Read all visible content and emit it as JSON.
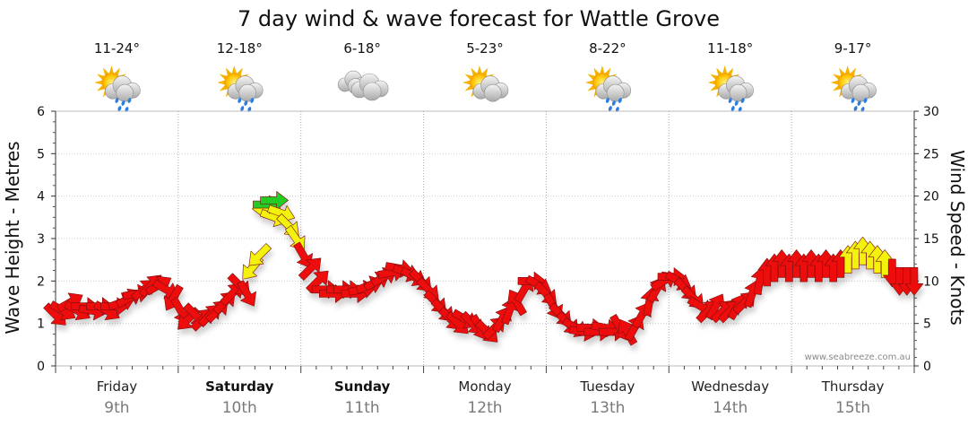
{
  "chart_data": {
    "type": "line",
    "title": "7 day wind & wave forecast for Wattle Grove",
    "ylabel_left": "Wave Height - Metres",
    "ylabel_right": "Wind Speed - Knots",
    "ylim_left": [
      0,
      6
    ],
    "ylim_right": [
      0,
      30
    ],
    "yticks_left": [
      "0",
      "1",
      "2",
      "3",
      "4",
      "5",
      "6"
    ],
    "yticks_right": [
      "0",
      "5",
      "10",
      "15",
      "20",
      "25",
      "30"
    ],
    "grid": true,
    "credit": "www.seabreeze.com.au",
    "days": [
      {
        "name": "Friday",
        "date": "9th",
        "temp": "11-24°",
        "icon": "sun-cloud-rain-icon",
        "bold": false
      },
      {
        "name": "Saturday",
        "date": "10th",
        "temp": "12-18°",
        "icon": "sun-cloud-rain-icon",
        "bold": true
      },
      {
        "name": "Sunday",
        "date": "11th",
        "temp": "6-18°",
        "icon": "cloud-icon",
        "bold": true
      },
      {
        "name": "Monday",
        "date": "12th",
        "temp": "5-23°",
        "icon": "sun-cloud-icon",
        "bold": false
      },
      {
        "name": "Tuesday",
        "date": "13th",
        "temp": "8-22°",
        "icon": "sun-cloud-rain-icon",
        "bold": false
      },
      {
        "name": "Wednesday",
        "date": "14th",
        "temp": "11-18°",
        "icon": "sun-cloud-rain-icon",
        "bold": false
      },
      {
        "name": "Thursday",
        "date": "15th",
        "temp": "9-17°",
        "icon": "sun-cloud-rain-icon",
        "bold": false
      }
    ],
    "wind_colors": {
      "green": "#22cc22",
      "yellow": "#f2f20a",
      "red": "#ee1111"
    },
    "wind_series": {
      "name": "Wind Speed",
      "x_unit": "days from start of Friday",
      "points": [
        {
          "x": 0.0,
          "kt": 6.0,
          "dir": 135,
          "c": "red"
        },
        {
          "x": 0.06,
          "kt": 6.5,
          "dir": 120,
          "c": "red"
        },
        {
          "x": 0.12,
          "kt": 7.5,
          "dir": 60,
          "c": "red"
        },
        {
          "x": 0.18,
          "kt": 6.5,
          "dir": 120,
          "c": "red"
        },
        {
          "x": 0.24,
          "kt": 7.0,
          "dir": 90,
          "c": "red"
        },
        {
          "x": 0.3,
          "kt": 6.5,
          "dir": 100,
          "c": "red"
        },
        {
          "x": 0.36,
          "kt": 7.0,
          "dir": 90,
          "c": "red"
        },
        {
          "x": 0.42,
          "kt": 6.5,
          "dir": 120,
          "c": "red"
        },
        {
          "x": 0.48,
          "kt": 7.0,
          "dir": 90,
          "c": "red"
        },
        {
          "x": 0.54,
          "kt": 7.5,
          "dir": 70,
          "c": "red"
        },
        {
          "x": 0.6,
          "kt": 8.0,
          "dir": 60,
          "c": "red"
        },
        {
          "x": 0.66,
          "kt": 8.5,
          "dir": 80,
          "c": "red"
        },
        {
          "x": 0.72,
          "kt": 9.0,
          "dir": 50,
          "c": "red"
        },
        {
          "x": 0.78,
          "kt": 9.5,
          "dir": 45,
          "c": "red"
        },
        {
          "x": 0.84,
          "kt": 9.5,
          "dir": 60,
          "c": "red"
        },
        {
          "x": 0.9,
          "kt": 9.0,
          "dir": 120,
          "c": "red"
        },
        {
          "x": 0.96,
          "kt": 8.0,
          "dir": 210,
          "c": "red"
        },
        {
          "x": 1.02,
          "kt": 6.5,
          "dir": 150,
          "c": "red"
        },
        {
          "x": 1.08,
          "kt": 5.5,
          "dir": 225,
          "c": "red"
        },
        {
          "x": 1.14,
          "kt": 6.0,
          "dir": 135,
          "c": "red"
        },
        {
          "x": 1.2,
          "kt": 5.5,
          "dir": 45,
          "c": "red"
        },
        {
          "x": 1.26,
          "kt": 6.0,
          "dir": 45,
          "c": "red"
        },
        {
          "x": 1.32,
          "kt": 6.5,
          "dir": 45,
          "c": "red"
        },
        {
          "x": 1.38,
          "kt": 7.5,
          "dir": 45,
          "c": "red"
        },
        {
          "x": 1.44,
          "kt": 8.5,
          "dir": 45,
          "c": "red"
        },
        {
          "x": 1.5,
          "kt": 9.5,
          "dir": 135,
          "c": "red"
        },
        {
          "x": 1.56,
          "kt": 8.5,
          "dir": 150,
          "c": "red"
        },
        {
          "x": 1.6,
          "kt": 11.5,
          "dir": 220,
          "c": "yellow"
        },
        {
          "x": 1.66,
          "kt": 13.0,
          "dir": 225,
          "c": "yellow"
        },
        {
          "x": 1.72,
          "kt": 18.5,
          "dir": 270,
          "c": "yellow"
        },
        {
          "x": 1.78,
          "kt": 17.5,
          "dir": 110,
          "c": "yellow"
        },
        {
          "x": 1.72,
          "kt": 19.0,
          "dir": 90,
          "c": "green"
        },
        {
          "x": 1.78,
          "kt": 19.5,
          "dir": 90,
          "c": "green"
        },
        {
          "x": 1.84,
          "kt": 18.0,
          "dir": 110,
          "c": "yellow"
        },
        {
          "x": 1.9,
          "kt": 16.5,
          "dir": 135,
          "c": "yellow"
        },
        {
          "x": 1.96,
          "kt": 15.0,
          "dir": 145,
          "c": "yellow"
        },
        {
          "x": 2.02,
          "kt": 13.0,
          "dir": 150,
          "c": "red"
        },
        {
          "x": 2.08,
          "kt": 11.5,
          "dir": 45,
          "c": "red"
        },
        {
          "x": 2.14,
          "kt": 10.0,
          "dir": 45,
          "c": "red"
        },
        {
          "x": 2.2,
          "kt": 9.0,
          "dir": 90,
          "c": "red"
        },
        {
          "x": 2.26,
          "kt": 8.5,
          "dir": 90,
          "c": "red"
        },
        {
          "x": 2.32,
          "kt": 9.0,
          "dir": 90,
          "c": "red"
        },
        {
          "x": 2.38,
          "kt": 9.0,
          "dir": 90,
          "c": "red"
        },
        {
          "x": 2.44,
          "kt": 8.5,
          "dir": 90,
          "c": "red"
        },
        {
          "x": 2.5,
          "kt": 9.0,
          "dir": 80,
          "c": "red"
        },
        {
          "x": 2.56,
          "kt": 9.5,
          "dir": 70,
          "c": "red"
        },
        {
          "x": 2.62,
          "kt": 10.0,
          "dir": 60,
          "c": "red"
        },
        {
          "x": 2.68,
          "kt": 10.5,
          "dir": 60,
          "c": "red"
        },
        {
          "x": 2.74,
          "kt": 11.0,
          "dir": 80,
          "c": "red"
        },
        {
          "x": 2.8,
          "kt": 11.5,
          "dir": 100,
          "c": "red"
        },
        {
          "x": 2.86,
          "kt": 11.0,
          "dir": 110,
          "c": "red"
        },
        {
          "x": 2.92,
          "kt": 10.5,
          "dir": 120,
          "c": "red"
        },
        {
          "x": 2.98,
          "kt": 10.0,
          "dir": 135,
          "c": "red"
        },
        {
          "x": 3.04,
          "kt": 9.0,
          "dir": 135,
          "c": "red"
        },
        {
          "x": 3.1,
          "kt": 7.5,
          "dir": 135,
          "c": "red"
        },
        {
          "x": 3.16,
          "kt": 6.5,
          "dir": 135,
          "c": "red"
        },
        {
          "x": 3.22,
          "kt": 5.5,
          "dir": 135,
          "c": "red"
        },
        {
          "x": 3.28,
          "kt": 5.0,
          "dir": 135,
          "c": "red"
        },
        {
          "x": 3.34,
          "kt": 5.5,
          "dir": 120,
          "c": "red"
        },
        {
          "x": 3.4,
          "kt": 5.0,
          "dir": 135,
          "c": "red"
        },
        {
          "x": 3.46,
          "kt": 4.5,
          "dir": 150,
          "c": "red"
        },
        {
          "x": 3.52,
          "kt": 4.0,
          "dir": 135,
          "c": "red"
        },
        {
          "x": 3.58,
          "kt": 4.5,
          "dir": 45,
          "c": "red"
        },
        {
          "x": 3.64,
          "kt": 5.5,
          "dir": 30,
          "c": "red"
        },
        {
          "x": 3.7,
          "kt": 6.5,
          "dir": 20,
          "c": "red"
        },
        {
          "x": 3.76,
          "kt": 7.5,
          "dir": 330,
          "c": "red"
        },
        {
          "x": 3.82,
          "kt": 9.0,
          "dir": 30,
          "c": "red"
        },
        {
          "x": 3.88,
          "kt": 10.0,
          "dir": 90,
          "c": "red"
        },
        {
          "x": 3.94,
          "kt": 9.5,
          "dir": 120,
          "c": "red"
        },
        {
          "x": 4.0,
          "kt": 8.5,
          "dir": 135,
          "c": "red"
        },
        {
          "x": 4.06,
          "kt": 7.0,
          "dir": 150,
          "c": "red"
        },
        {
          "x": 4.12,
          "kt": 6.0,
          "dir": 135,
          "c": "red"
        },
        {
          "x": 4.18,
          "kt": 5.0,
          "dir": 135,
          "c": "red"
        },
        {
          "x": 4.24,
          "kt": 4.5,
          "dir": 120,
          "c": "red"
        },
        {
          "x": 4.3,
          "kt": 4.0,
          "dir": 100,
          "c": "red"
        },
        {
          "x": 4.36,
          "kt": 4.5,
          "dir": 90,
          "c": "red"
        },
        {
          "x": 4.42,
          "kt": 4.0,
          "dir": 90,
          "c": "red"
        },
        {
          "x": 4.48,
          "kt": 4.5,
          "dir": 100,
          "c": "red"
        },
        {
          "x": 4.54,
          "kt": 4.0,
          "dir": 90,
          "c": "red"
        },
        {
          "x": 4.6,
          "kt": 4.5,
          "dir": 150,
          "c": "red"
        },
        {
          "x": 4.66,
          "kt": 4.0,
          "dir": 330,
          "c": "red"
        },
        {
          "x": 4.72,
          "kt": 4.5,
          "dir": 30,
          "c": "red"
        },
        {
          "x": 4.78,
          "kt": 6.0,
          "dir": 30,
          "c": "red"
        },
        {
          "x": 4.84,
          "kt": 7.5,
          "dir": 10,
          "c": "red"
        },
        {
          "x": 4.9,
          "kt": 9.0,
          "dir": 30,
          "c": "red"
        },
        {
          "x": 4.96,
          "kt": 10.0,
          "dir": 60,
          "c": "red"
        },
        {
          "x": 5.02,
          "kt": 10.5,
          "dir": 90,
          "c": "red"
        },
        {
          "x": 5.08,
          "kt": 10.0,
          "dir": 120,
          "c": "red"
        },
        {
          "x": 5.14,
          "kt": 9.0,
          "dir": 135,
          "c": "red"
        },
        {
          "x": 5.2,
          "kt": 8.0,
          "dir": 135,
          "c": "red"
        },
        {
          "x": 5.26,
          "kt": 7.0,
          "dir": 120,
          "c": "red"
        },
        {
          "x": 5.32,
          "kt": 6.5,
          "dir": 45,
          "c": "red"
        },
        {
          "x": 5.38,
          "kt": 7.0,
          "dir": 30,
          "c": "red"
        },
        {
          "x": 5.44,
          "kt": 6.5,
          "dir": 45,
          "c": "red"
        },
        {
          "x": 5.5,
          "kt": 6.5,
          "dir": 45,
          "c": "red"
        },
        {
          "x": 5.56,
          "kt": 7.0,
          "dir": 30,
          "c": "red"
        },
        {
          "x": 5.62,
          "kt": 7.5,
          "dir": 45,
          "c": "red"
        },
        {
          "x": 5.68,
          "kt": 8.5,
          "dir": 20,
          "c": "red"
        },
        {
          "x": 5.74,
          "kt": 10.0,
          "dir": 10,
          "c": "red"
        },
        {
          "x": 5.8,
          "kt": 11.0,
          "dir": 0,
          "c": "red"
        },
        {
          "x": 5.86,
          "kt": 11.5,
          "dir": 0,
          "c": "red"
        },
        {
          "x": 5.92,
          "kt": 12.0,
          "dir": 0,
          "c": "red"
        },
        {
          "x": 5.98,
          "kt": 11.5,
          "dir": 0,
          "c": "red"
        },
        {
          "x": 6.04,
          "kt": 12.0,
          "dir": 0,
          "c": "red"
        },
        {
          "x": 6.1,
          "kt": 11.5,
          "dir": 0,
          "c": "red"
        },
        {
          "x": 6.16,
          "kt": 12.0,
          "dir": 0,
          "c": "red"
        },
        {
          "x": 6.22,
          "kt": 11.5,
          "dir": 0,
          "c": "red"
        },
        {
          "x": 6.28,
          "kt": 12.0,
          "dir": 0,
          "c": "red"
        },
        {
          "x": 6.34,
          "kt": 11.5,
          "dir": 0,
          "c": "red"
        },
        {
          "x": 6.4,
          "kt": 12.0,
          "dir": 0,
          "c": "red"
        },
        {
          "x": 6.46,
          "kt": 12.5,
          "dir": 0,
          "c": "yellow"
        },
        {
          "x": 6.52,
          "kt": 13.0,
          "dir": 0,
          "c": "yellow"
        },
        {
          "x": 6.58,
          "kt": 13.5,
          "dir": 0,
          "c": "yellow"
        },
        {
          "x": 6.64,
          "kt": 13.0,
          "dir": 0,
          "c": "yellow"
        },
        {
          "x": 6.7,
          "kt": 12.5,
          "dir": 0,
          "c": "yellow"
        },
        {
          "x": 6.76,
          "kt": 12.0,
          "dir": 0,
          "c": "yellow"
        },
        {
          "x": 6.82,
          "kt": 11.0,
          "dir": 180,
          "c": "red"
        },
        {
          "x": 6.88,
          "kt": 10.0,
          "dir": 180,
          "c": "red"
        },
        {
          "x": 6.94,
          "kt": 10.0,
          "dir": 180,
          "c": "red"
        },
        {
          "x": 7.0,
          "kt": 10.0,
          "dir": 180,
          "c": "red"
        }
      ]
    }
  }
}
